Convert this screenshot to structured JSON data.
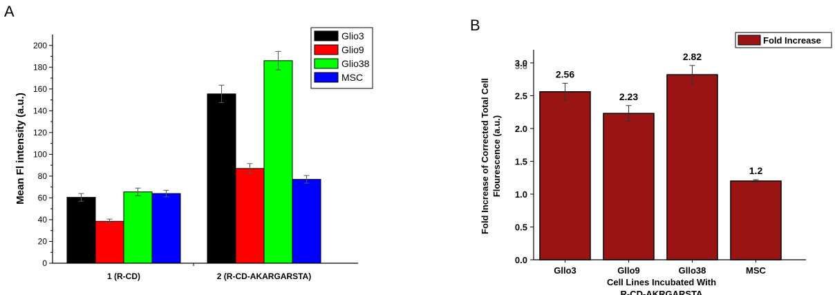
{
  "panels": {
    "a_label": "A",
    "b_label": "B"
  },
  "chart_data": [
    {
      "type": "bar",
      "categories": [
        "1 (R-CD)",
        "2 (R-CD-AKARGARSTA)"
      ],
      "series": [
        {
          "name": "Glio3",
          "color": "#000000",
          "values": [
            60.5,
            155.5
          ],
          "errors": [
            3.5,
            8
          ]
        },
        {
          "name": "Glio9",
          "color": "#ff0000",
          "values": [
            38.5,
            87
          ],
          "errors": [
            2,
            4.5
          ]
        },
        {
          "name": "Glio38",
          "color": "#00ff00",
          "values": [
            65.5,
            186
          ],
          "errors": [
            3.5,
            8.5
          ]
        },
        {
          "name": "MSC",
          "color": "#0000ff",
          "values": [
            64,
            77
          ],
          "errors": [
            3,
            3.5
          ]
        }
      ],
      "xlabel": "",
      "ylabel": "Mean Fl intensity (a.u.)",
      "ylim": [
        0,
        210
      ],
      "yticks": [
        0,
        20,
        40,
        60,
        80,
        100,
        120,
        140,
        160,
        180,
        200
      ],
      "legend_position": "top-right",
      "grid": false
    },
    {
      "type": "bar",
      "categories": [
        "Gllo3",
        "Gllo9",
        "Gllo38",
        "MSC"
      ],
      "series": [
        {
          "name": "Fold Increase",
          "color": "#9b1414",
          "values": [
            2.56,
            2.23,
            2.82,
            1.2
          ],
          "errors": [
            0.13,
            0.12,
            0.14,
            0.02
          ]
        }
      ],
      "data_labels": [
        "2.56",
        "2.23",
        "2.82",
        "1.2"
      ],
      "xlabel": "Cell Lines Incubated With",
      "xlabel_line2": "R-CD-AKRGARSTA",
      "ylabel_line1": "Fold Increase of Corrected Total Cell",
      "ylabel_line2": "Flourescence (a.u.)",
      "ylim": [
        0,
        3.2
      ],
      "yticks": [
        "0.0",
        "0.5",
        "1.0",
        "1.5",
        "2.0",
        "2.5",
        "3.0"
      ],
      "top_tick_overlay": "3.6",
      "legend_position": "top-right",
      "grid": false
    }
  ]
}
